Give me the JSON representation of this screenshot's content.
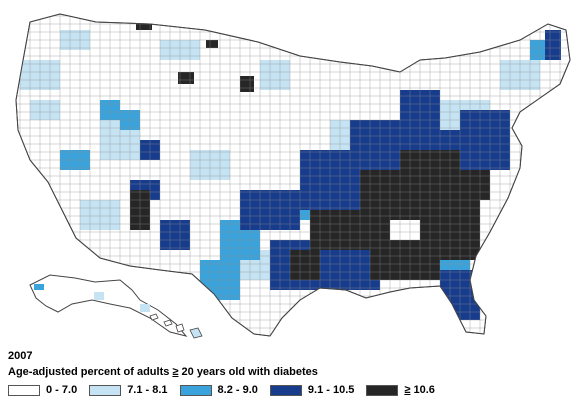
{
  "map": {
    "year": "2007",
    "legend_title_prefix": "Age-adjusted percent of adults ",
    "legend_title_symbol": "≥",
    "legend_title_suffix": " 20 years old with diabetes",
    "legend": [
      {
        "label": "0 - 7.0",
        "color": "#ffffff"
      },
      {
        "label": "7.1 - 8.1",
        "color": "#c5e3f3"
      },
      {
        "label": "8.2 - 9.0",
        "color": "#3aa3dc"
      },
      {
        "label": "9.1 - 10.5",
        "color": "#173c8c"
      },
      {
        "label_symbol": "≥",
        "label": " 10.6",
        "color": "#262626"
      }
    ]
  }
}
